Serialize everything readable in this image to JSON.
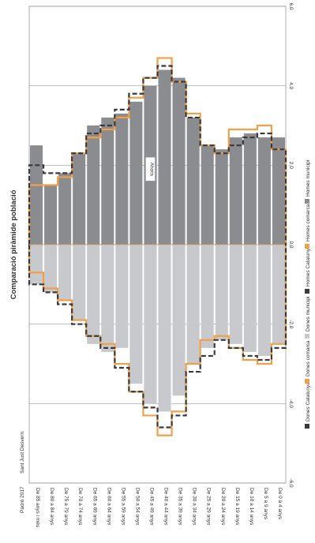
{
  "chart_data": {
    "type": "bar",
    "orientation": "horizontal-pyramid",
    "title": "Comparació piràmide població",
    "source": "Padró 2017",
    "categories": [
      "De 85 anys i més",
      "De 80 a 84 anys",
      "De 75 a 79 anys",
      "De 70 a 74 anys",
      "De 65 a 69 anys",
      "De 60 a 64 anys",
      "De 55 a 59 anys",
      "De 50 a 54 anys",
      "De 45 a 49 anys",
      "De 40 a 44 anys",
      "De 35 a 39 anys",
      "De 30 a 34 anys",
      "De 25 a 29 anys",
      "De 20 a 24 anys",
      "De 15 a 19 anys",
      "De 10 a 14 anys",
      "De 5 a 9 anys",
      "De 0 a 4 anys"
    ],
    "axis_ticks": [
      "-6,0",
      "-4,0",
      "-2,0",
      "0,0",
      "2,0",
      "4,0",
      "6,0"
    ],
    "xlim": [
      -6,
      6
    ],
    "grid": true,
    "annotation": "Ahora",
    "location_label": "Sant Just Desvern",
    "series": [
      {
        "name": "Dones municipi",
        "color": "#c8c9cc",
        "style": "bar",
        "values": [
          -1.0,
          -1.2,
          -1.4,
          -1.9,
          -2.5,
          -2.7,
          -2.6,
          -3.5,
          -4.0,
          -4.2,
          -3.8,
          -3.0,
          -2.6,
          -2.4,
          -2.5,
          -2.7,
          -2.8,
          -2.5
        ]
      },
      {
        "name": "Homes municipi",
        "color": "#8b8c90",
        "style": "bar",
        "values": [
          2.5,
          1.5,
          1.8,
          2.3,
          3.0,
          3.2,
          3.3,
          3.6,
          4.0,
          4.4,
          4.2,
          3.2,
          2.5,
          2.4,
          2.7,
          2.8,
          2.7,
          2.7
        ]
      },
      {
        "name": "Dones comarca",
        "color": "#f0a04b",
        "style": "step",
        "values": [
          -0.7,
          -1.1,
          -1.4,
          -1.9,
          -2.3,
          -2.5,
          -3.0,
          -3.7,
          -4.3,
          -4.8,
          -4.2,
          -3.0,
          -2.4,
          -2.3,
          -2.6,
          -2.9,
          -3.0,
          -2.5
        ]
      },
      {
        "name": "Homes comarca",
        "color": "#f0a04b",
        "style": "step",
        "values": [
          1.5,
          1.5,
          1.7,
          2.3,
          2.7,
          2.9,
          3.2,
          3.7,
          4.2,
          4.7,
          4.1,
          3.3,
          2.5,
          2.3,
          2.9,
          2.9,
          3.0,
          2.4
        ]
      },
      {
        "name": "Dones Catalunya",
        "color": "#3a3a3c",
        "style": "dashed-step",
        "values": [
          -1.0,
          -1.2,
          -1.5,
          -2.0,
          -2.3,
          -2.6,
          -3.1,
          -3.7,
          -4.1,
          -4.6,
          -4.3,
          -3.2,
          -2.8,
          -2.4,
          -2.6,
          -2.8,
          -2.9,
          -2.6
        ]
      },
      {
        "name": "Homes Catalunya",
        "color": "#3a3a3c",
        "style": "dashed-step",
        "values": [
          2.0,
          1.8,
          1.8,
          2.3,
          2.8,
          3.0,
          3.4,
          3.8,
          4.2,
          4.5,
          4.1,
          3.2,
          2.5,
          2.3,
          2.5,
          2.7,
          2.8,
          2.4
        ]
      }
    ],
    "legend": [
      {
        "label": "Dones Catalunya",
        "color": "#3a3a3c"
      },
      {
        "label": "Dones comarca",
        "color": "#f0a04b"
      },
      {
        "label": "Dones municipi",
        "color": "#c8c9cc"
      },
      {
        "label": "Homes Catalunya",
        "color": "#3a3a3c"
      },
      {
        "label": "Homes comarca",
        "color": "#f0a04b"
      },
      {
        "label": "Homes municipi",
        "color": "#8b8c90"
      }
    ]
  }
}
